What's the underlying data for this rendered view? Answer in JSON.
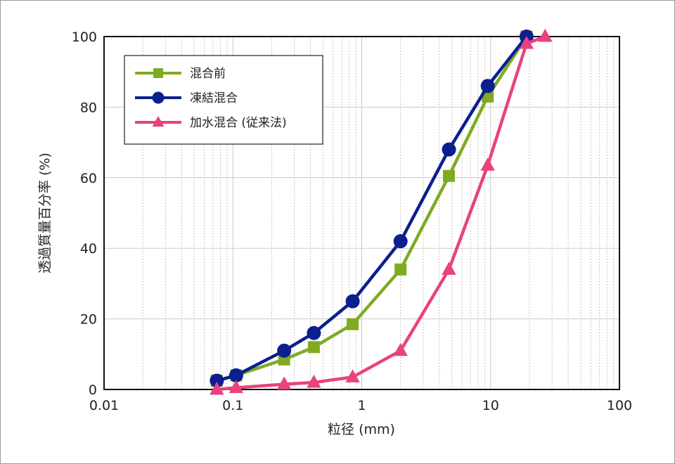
{
  "chart_data": {
    "type": "line",
    "x_scale": "log",
    "xlim": [
      0.01,
      100
    ],
    "ylim": [
      0,
      100
    ],
    "xlabel": "粒径 (mm)",
    "ylabel": "透過質量百分率 (%)",
    "x_ticks": [
      "0.01",
      "0.1",
      "1",
      "10",
      "100"
    ],
    "y_ticks": [
      "0",
      "20",
      "40",
      "60",
      "80",
      "100"
    ],
    "grid": true,
    "legend_position": "top-left",
    "series": [
      {
        "name": "混合前",
        "color": "#7fab22",
        "marker": "square",
        "x": [
          0.075,
          0.106,
          0.25,
          0.425,
          0.85,
          2,
          4.75,
          9.5,
          19
        ],
        "y": [
          2.5,
          4,
          8.5,
          12,
          18.5,
          34,
          60.5,
          83,
          100
        ]
      },
      {
        "name": "凍結混合",
        "color": "#0b1f8f",
        "marker": "circle",
        "x": [
          0.075,
          0.106,
          0.25,
          0.425,
          0.85,
          2,
          4.75,
          9.5,
          19
        ],
        "y": [
          2.5,
          4,
          11,
          16,
          25,
          42,
          68,
          86,
          100
        ]
      },
      {
        "name": "加水混合 (従来法)",
        "color": "#e8427f",
        "marker": "triangle",
        "x": [
          0.075,
          0.106,
          0.25,
          0.425,
          0.85,
          2,
          4.75,
          9.5,
          19,
          26.5
        ],
        "y": [
          0,
          0.5,
          1.5,
          2,
          3.5,
          11,
          34,
          63.5,
          98,
          100
        ]
      }
    ]
  }
}
